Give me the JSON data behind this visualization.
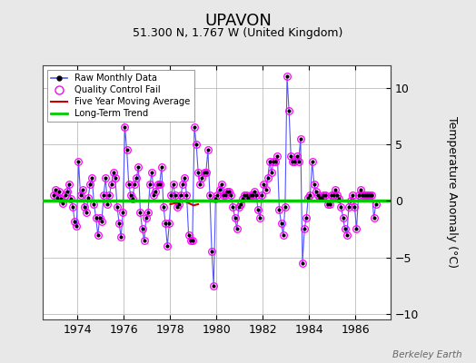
{
  "title": "UPAVON",
  "subtitle": "51.300 N, 1.767 W (United Kingdom)",
  "ylabel": "Temperature Anomaly (°C)",
  "watermark": "Berkeley Earth",
  "ylim": [
    -10.5,
    12
  ],
  "xlim": [
    1972.5,
    1987.5
  ],
  "yticks": [
    -10,
    -5,
    0,
    5,
    10
  ],
  "xticks": [
    1974,
    1976,
    1978,
    1980,
    1982,
    1984,
    1986
  ],
  "background_color": "#e8e8e8",
  "plot_bg_color": "#ffffff",
  "grid_color": "#bbbbbb",
  "raw_data_x": [
    1972.958,
    1973.042,
    1973.125,
    1973.208,
    1973.292,
    1973.375,
    1973.458,
    1973.542,
    1973.625,
    1973.708,
    1973.792,
    1973.875,
    1973.958,
    1974.042,
    1974.125,
    1974.208,
    1974.292,
    1974.375,
    1974.458,
    1974.542,
    1974.625,
    1974.708,
    1974.792,
    1974.875,
    1974.958,
    1975.042,
    1975.125,
    1975.208,
    1975.292,
    1975.375,
    1975.458,
    1975.542,
    1975.625,
    1975.708,
    1975.792,
    1975.875,
    1975.958,
    1976.042,
    1976.125,
    1976.208,
    1976.292,
    1976.375,
    1976.458,
    1976.542,
    1976.625,
    1976.708,
    1976.792,
    1976.875,
    1976.958,
    1977.042,
    1977.125,
    1977.208,
    1977.292,
    1977.375,
    1977.458,
    1977.542,
    1977.625,
    1977.708,
    1977.792,
    1977.875,
    1977.958,
    1978.042,
    1978.125,
    1978.208,
    1978.292,
    1978.375,
    1978.458,
    1978.542,
    1978.625,
    1978.708,
    1978.792,
    1978.875,
    1978.958,
    1979.042,
    1979.125,
    1979.208,
    1979.292,
    1979.375,
    1979.458,
    1979.542,
    1979.625,
    1979.708,
    1979.792,
    1979.875,
    1979.958,
    1980.042,
    1980.125,
    1980.208,
    1980.292,
    1980.375,
    1980.458,
    1980.542,
    1980.625,
    1980.708,
    1980.792,
    1980.875,
    1980.958,
    1981.042,
    1981.125,
    1981.208,
    1981.292,
    1981.375,
    1981.458,
    1981.542,
    1981.625,
    1981.708,
    1981.792,
    1981.875,
    1981.958,
    1982.042,
    1982.125,
    1982.208,
    1982.292,
    1982.375,
    1982.458,
    1982.542,
    1982.625,
    1982.708,
    1982.792,
    1982.875,
    1982.958,
    1983.042,
    1983.125,
    1983.208,
    1983.292,
    1983.375,
    1983.458,
    1983.542,
    1983.625,
    1983.708,
    1983.792,
    1983.875,
    1983.958,
    1984.042,
    1984.125,
    1984.208,
    1984.292,
    1984.375,
    1984.458,
    1984.542,
    1984.625,
    1984.708,
    1984.792,
    1984.875,
    1984.958,
    1985.042,
    1985.125,
    1985.208,
    1985.292,
    1985.375,
    1985.458,
    1985.542,
    1985.625,
    1985.708,
    1985.792,
    1985.875,
    1985.958,
    1986.042,
    1986.125,
    1986.208,
    1986.292,
    1986.375,
    1986.458,
    1986.542,
    1986.625,
    1986.708,
    1986.792,
    1986.875
  ],
  "raw_data_y": [
    0.5,
    1.0,
    0.3,
    0.8,
    0.2,
    -0.2,
    0.5,
    0.8,
    1.5,
    0.2,
    -0.5,
    -1.8,
    -2.2,
    3.5,
    0.5,
    1.0,
    -0.5,
    -1.0,
    0.3,
    1.5,
    2.0,
    -0.3,
    -1.5,
    -3.0,
    -1.5,
    -1.8,
    0.5,
    2.0,
    -0.3,
    0.5,
    1.5,
    2.5,
    2.0,
    -0.5,
    -2.0,
    -3.2,
    -1.0,
    6.5,
    4.5,
    1.5,
    0.5,
    0.2,
    1.5,
    2.0,
    3.0,
    -1.0,
    -2.5,
    -3.5,
    -1.5,
    -1.0,
    1.5,
    2.5,
    0.5,
    0.8,
    1.5,
    1.5,
    3.0,
    -0.5,
    -2.0,
    -4.0,
    -2.0,
    0.5,
    1.5,
    0.5,
    -0.5,
    -0.3,
    0.5,
    1.5,
    2.0,
    0.5,
    -3.0,
    -3.5,
    -3.5,
    6.5,
    5.0,
    2.5,
    1.5,
    2.0,
    2.5,
    2.5,
    4.5,
    0.5,
    -4.5,
    -7.5,
    0.2,
    0.5,
    1.0,
    1.5,
    0.5,
    0.5,
    0.8,
    0.8,
    0.5,
    -0.5,
    -1.5,
    -2.5,
    -0.5,
    -0.3,
    0.2,
    0.5,
    0.5,
    0.3,
    0.5,
    0.5,
    0.8,
    0.5,
    -0.8,
    -1.5,
    0.5,
    1.5,
    1.0,
    2.0,
    3.5,
    2.5,
    3.5,
    3.5,
    4.0,
    -0.8,
    -2.0,
    -3.0,
    -0.5,
    11.0,
    8.0,
    4.0,
    3.5,
    3.5,
    4.0,
    3.5,
    5.5,
    -5.5,
    -2.5,
    -1.5,
    0.3,
    0.5,
    3.5,
    1.5,
    0.8,
    0.5,
    0.3,
    0.3,
    0.5,
    0.5,
    -0.3,
    -0.3,
    0.5,
    0.5,
    1.0,
    0.5,
    0.2,
    -0.5,
    -1.5,
    -2.5,
    -3.0,
    -0.5,
    0.0,
    0.5,
    -0.5,
    -2.5,
    0.5,
    1.0,
    0.5,
    0.5,
    0.5,
    0.5,
    0.5,
    0.5,
    -1.5,
    -0.3
  ],
  "five_year_ma_x": [
    1978.0,
    1978.1,
    1978.2,
    1978.3,
    1978.4,
    1978.5,
    1978.6,
    1978.7,
    1978.8,
    1978.9,
    1979.0,
    1979.1,
    1979.2
  ],
  "five_year_ma_y": [
    -0.3,
    -0.25,
    -0.2,
    -0.15,
    -0.1,
    -0.05,
    0.0,
    -0.1,
    -0.2,
    -0.3,
    -0.4,
    -0.35,
    -0.3
  ],
  "long_trend_x": [
    1972.5,
    1987.5
  ],
  "long_trend_y": [
    0.05,
    0.05
  ],
  "line_color": "#5555ff",
  "line_color_dark": "#3333cc",
  "marker_color": "#000000",
  "qc_fail_color": "#ff00ff",
  "ma_color": "#cc0000",
  "trend_color": "#00cc00",
  "trend_linewidth": 2.5,
  "ma_linewidth": 1.5,
  "line_linewidth": 0.8,
  "title_fontsize": 13,
  "subtitle_fontsize": 9,
  "tick_fontsize": 9,
  "ylabel_fontsize": 9
}
